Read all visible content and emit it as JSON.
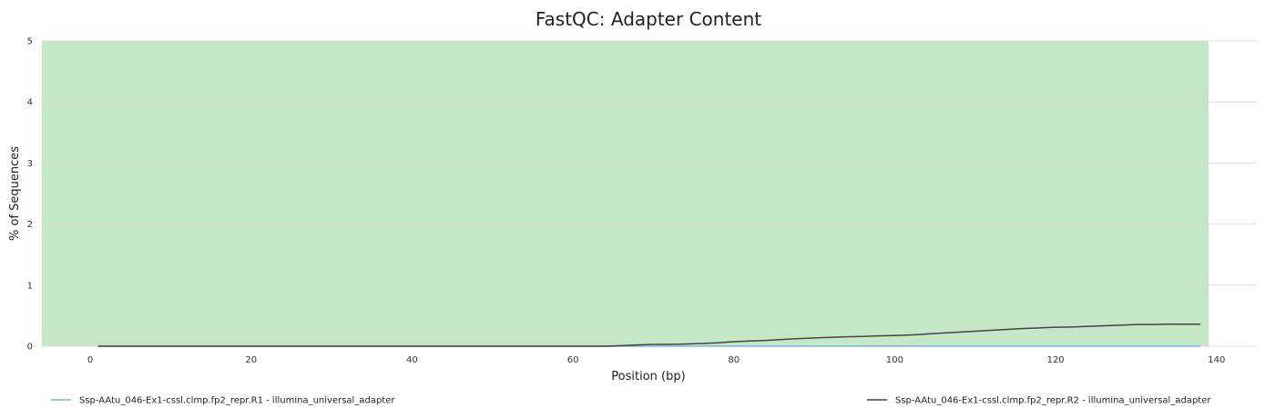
{
  "chart_data": {
    "type": "line",
    "title": "FastQC: Adapter Content",
    "xlabel": "Position (bp)",
    "ylabel": "% of Sequences",
    "xlim": [
      -6,
      145
    ],
    "ylim": [
      0,
      5
    ],
    "xticks": [
      0,
      20,
      40,
      60,
      80,
      100,
      120,
      140
    ],
    "yticks": [
      0,
      1,
      2,
      3,
      4,
      5
    ],
    "grid": true,
    "legend_position": "bottom",
    "pass_band": {
      "color": "#c4e7c6",
      "x_range": [
        -6,
        139
      ],
      "y_range": [
        0,
        5
      ]
    },
    "series": [
      {
        "name": "Ssp-AAtu_046-Ex1-cssl.clmp.fp2_repr.R1 - illumina_universal_adapter",
        "color": "#7cb5ec",
        "x": [
          1,
          138
        ],
        "y": [
          0,
          0
        ]
      },
      {
        "name": "Ssp-AAtu_046-Ex1-cssl.clmp.fp2_repr.R2 - illumina_universal_adapter",
        "color": "#434348",
        "x": [
          1,
          10,
          20,
          30,
          40,
          50,
          60,
          64,
          66,
          68,
          70,
          72,
          74,
          76,
          78,
          80,
          82,
          84,
          86,
          88,
          90,
          92,
          94,
          96,
          98,
          100,
          102,
          104,
          106,
          108,
          110,
          112,
          114,
          116,
          118,
          120,
          122,
          124,
          126,
          128,
          130,
          132,
          134,
          136,
          138
        ],
        "y": [
          0,
          0,
          0,
          0,
          0,
          0,
          0,
          0.0,
          0.01,
          0.02,
          0.03,
          0.03,
          0.035,
          0.045,
          0.055,
          0.075,
          0.085,
          0.095,
          0.11,
          0.125,
          0.135,
          0.145,
          0.155,
          0.16,
          0.17,
          0.175,
          0.185,
          0.2,
          0.215,
          0.23,
          0.245,
          0.26,
          0.275,
          0.29,
          0.3,
          0.31,
          0.315,
          0.325,
          0.335,
          0.345,
          0.355,
          0.355,
          0.36,
          0.36,
          0.36
        ]
      }
    ]
  }
}
